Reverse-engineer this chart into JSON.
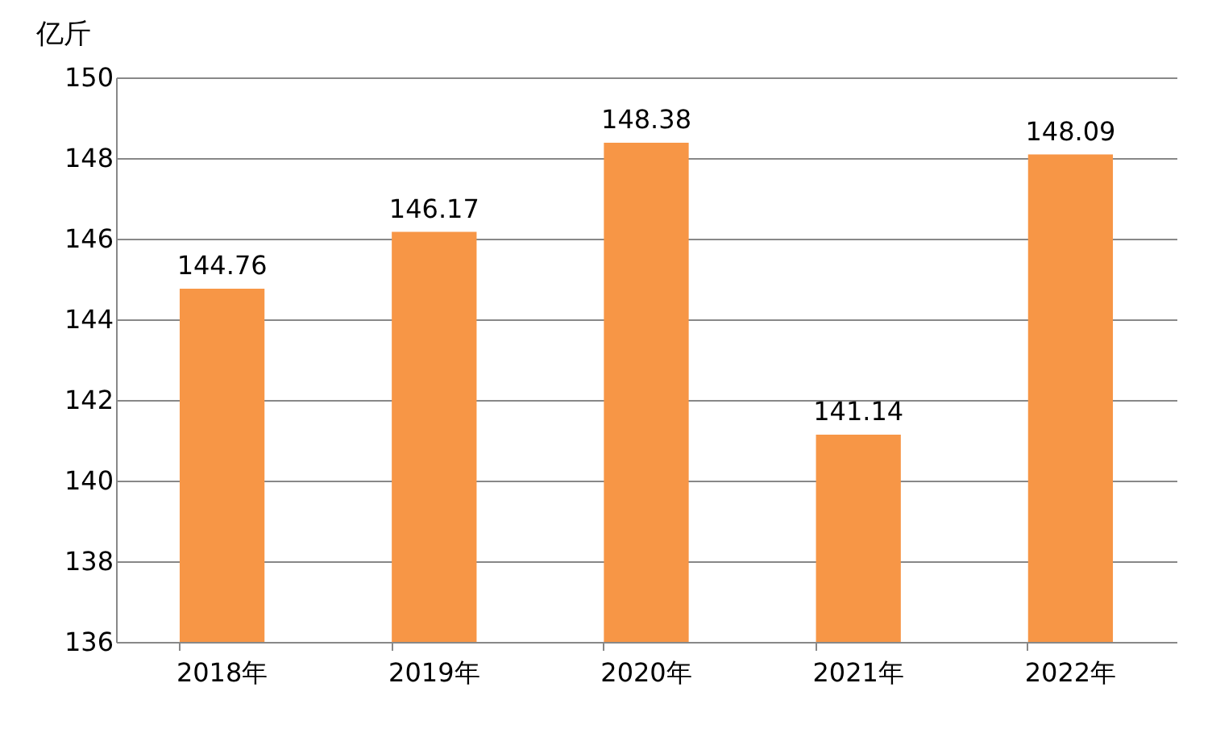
{
  "chart_data": {
    "type": "bar",
    "ylabel": "亿斤",
    "categories": [
      "2018年",
      "2019年",
      "2020年",
      "2021年",
      "2022年"
    ],
    "values": [
      144.76,
      146.17,
      148.38,
      141.14,
      148.09
    ],
    "color": "#f79646",
    "ylim": [
      136,
      150
    ],
    "yticks": [
      136,
      138,
      140,
      142,
      144,
      146,
      148,
      150
    ],
    "grid": "y",
    "data_labels": true
  }
}
